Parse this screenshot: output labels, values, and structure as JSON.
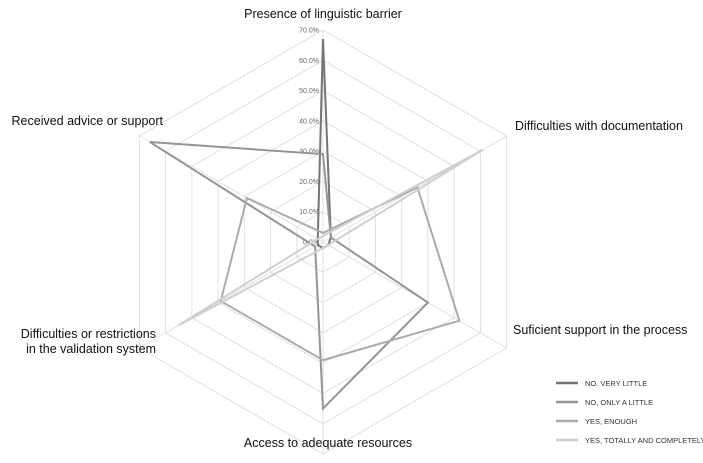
{
  "chart_data": {
    "type": "radar",
    "categories": [
      "Presence of linguistic barrier",
      "Difficulties with documentation",
      "Suficient support in the process",
      "Access to adequate resources",
      "Difficulties or restrictions in the validation system",
      "Received advice or support"
    ],
    "rlim": [
      0,
      70
    ],
    "rticks": [
      {
        "value": 0,
        "label": "0.0%"
      },
      {
        "value": 10,
        "label": "10.0%"
      },
      {
        "value": 20,
        "label": "20.0%"
      },
      {
        "value": 30,
        "label": "30.0%"
      },
      {
        "value": 40,
        "label": "40.0%"
      },
      {
        "value": 50,
        "label": "50.0%"
      },
      {
        "value": 60,
        "label": "60.0%"
      },
      {
        "value": 70,
        "label": "70.0%"
      }
    ],
    "grid": true,
    "legend": "bottom-right",
    "series": [
      {
        "name": "NO. VERY LITTLE",
        "color": "#747474",
        "values": [
          67,
          3,
          2,
          2,
          2,
          2
        ]
      },
      {
        "name": "NO, ONLY A LITTLE",
        "color": "#959595",
        "values": [
          29,
          3,
          40,
          55,
          3,
          66
        ]
      },
      {
        "name": "YES, ENOUGH",
        "color": "#ababab",
        "values": [
          3,
          36,
          52,
          39,
          39,
          29
        ]
      },
      {
        "name": "YES, TOTALLY AND COMPLETELY",
        "color": "#cfcfcf",
        "values": [
          2,
          61,
          2,
          2,
          55,
          2
        ]
      }
    ]
  }
}
